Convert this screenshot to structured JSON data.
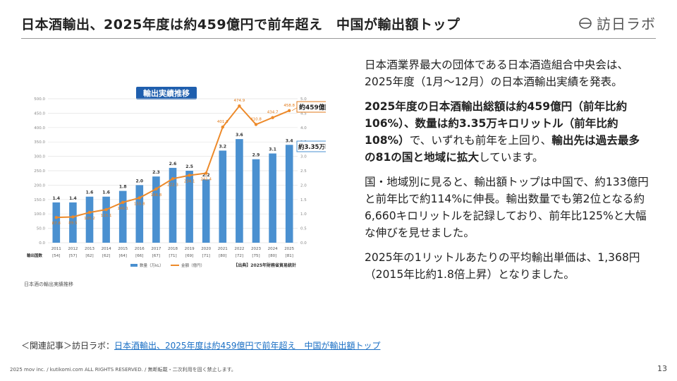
{
  "header": {
    "title": "日本酒輸出、2025年度は約459億円で前年超え　中国が輸出額トップ",
    "logo_text": "訪日ラボ"
  },
  "chart_data": {
    "type": "bar",
    "title": "輸出実績推移",
    "categories": [
      "2011",
      "2012",
      "2013",
      "2014",
      "2015",
      "2016",
      "2017",
      "2018",
      "2019",
      "2020",
      "2021",
      "2022",
      "2023",
      "2024",
      "2025"
    ],
    "category_sublabels": [
      "[54]",
      "[57]",
      "[62]",
      "[62]",
      "[64]",
      "[66]",
      "[67]",
      "[71]",
      "[69]",
      "[71]",
      "[80]",
      "[72]",
      "[75]",
      "[80]",
      "[81]"
    ],
    "row_label": "輸出国数",
    "series": [
      {
        "name": "数量（万kL）",
        "type": "bar",
        "axis": "right",
        "color": "#4a90d0",
        "values": [
          1.4,
          1.4,
          1.6,
          1.6,
          1.8,
          2.0,
          2.3,
          2.6,
          2.5,
          2.2,
          3.2,
          3.6,
          2.9,
          3.1,
          3.4
        ]
      },
      {
        "name": "金額（億円）",
        "type": "line",
        "axis": "left",
        "color": "#ed8a2a",
        "values": [
          87.8,
          89.5,
          105.2,
          115.1,
          140.1,
          155.8,
          186.8,
          222.3,
          234.1,
          241.4,
          401.8,
          474.9,
          410.8,
          434.7,
          458.8
        ]
      }
    ],
    "yleft": {
      "min": 0,
      "max": 500,
      "ticks": [
        "0.0",
        "50.0",
        "100.0",
        "150.0",
        "200.0",
        "250.0",
        "300.0",
        "350.0",
        "400.0",
        "450.0",
        "500.0"
      ]
    },
    "yright": {
      "min": 0,
      "max": 5,
      "ticks": [
        "0.0",
        "0.5",
        "1.0",
        "1.5",
        "2.0",
        "2.5",
        "3.0",
        "3.5",
        "4.0",
        "4.5",
        "5.0"
      ]
    },
    "callout_amount": "約459億円",
    "callout_volume": "約3.35万kl",
    "source": "【出典】2025年財務省貿易統計",
    "grid": true,
    "legend": "bottom-center"
  },
  "chart_caption": "日本酒の輸出実績推移",
  "body": {
    "p1": "日本酒業界最大の団体である日本酒造組合中央会は、2025年度（1月〜12月）の日本酒輸出実績を発表。",
    "p2_a": "2025年度の日本酒輸出総額は約459億円（前年比約106%）、数量は約3.35万キロリットル（前年比約108%）",
    "p2_b": "で、いずれも前年を上回り、",
    "p2_c": "輸出先は過去最多の81の国と地域に拡大",
    "p2_d": "しています。",
    "p3": "国・地域別に見ると、輸出額トップは中国で、約133億円と前年比で約114%に伸長。輸出数量でも第2位となる約6,660キロリットルを記録しており、前年比125%と大幅な伸びを見せました。",
    "p4": "2025年の1リットルあたりの平均輸出単価は、1,368円（2015年比約1.8倍上昇）となりました。"
  },
  "related": {
    "prefix": "＜関連記事＞訪日ラボ：",
    "link_text": "日本酒輸出、2025年度は約459億円で前年超え　中国が輸出額トップ"
  },
  "footer": {
    "copyright": "2025 mov inc. / kutikomi.com ALL RIGHTS RESERVED. / 無断転載・二次利用を固く禁止します。",
    "page_number": "13"
  }
}
